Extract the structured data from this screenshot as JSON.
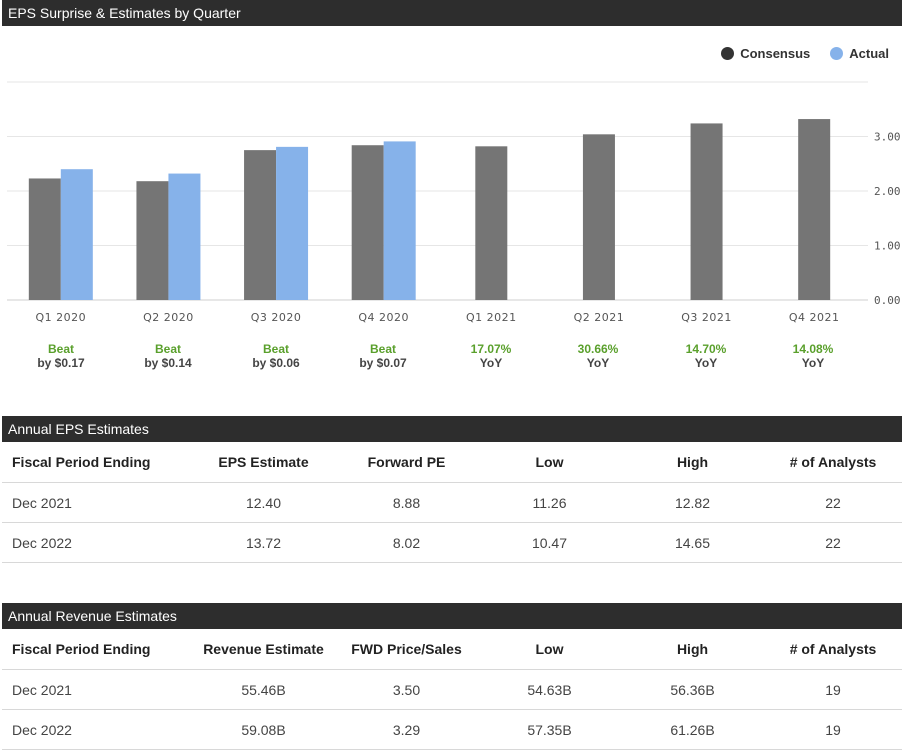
{
  "eps_chart": {
    "title": "EPS Surprise & Estimates by Quarter",
    "legend": [
      {
        "label": "Consensus",
        "color": "#757575"
      },
      {
        "label": "Actual",
        "color": "#86b2ea"
      }
    ],
    "surprises": [
      {
        "line1": "Beat",
        "line2": "by $0.17"
      },
      {
        "line1": "Beat",
        "line2": "by $0.14"
      },
      {
        "line1": "Beat",
        "line2": "by $0.06"
      },
      {
        "line1": "Beat",
        "line2": "by $0.07"
      },
      {
        "line1": "17.07%",
        "line2": "YoY"
      },
      {
        "line1": "30.66%",
        "line2": "YoY"
      },
      {
        "line1": "14.70%",
        "line2": "YoY"
      },
      {
        "line1": "14.08%",
        "line2": "YoY"
      }
    ]
  },
  "chart_data": {
    "type": "bar",
    "title": "EPS Surprise & Estimates by Quarter",
    "categories": [
      "Q1 2020",
      "Q2 2020",
      "Q3 2020",
      "Q4 2020",
      "Q1 2021",
      "Q2 2021",
      "Q3 2021",
      "Q4 2021"
    ],
    "series": [
      {
        "name": "Consensus",
        "values": [
          2.23,
          2.18,
          2.75,
          2.84,
          2.82,
          3.04,
          3.24,
          3.32
        ]
      },
      {
        "name": "Actual",
        "values": [
          2.4,
          2.32,
          2.81,
          2.91,
          null,
          null,
          null,
          null
        ]
      }
    ],
    "yticks": [
      "0.00",
      "1.00",
      "2.00",
      "3.00"
    ],
    "ylim": [
      0,
      4
    ],
    "xlabel": "",
    "ylabel": "",
    "legend_position": "top-right"
  },
  "annual_eps": {
    "title": "Annual EPS Estimates",
    "headers": [
      "Fiscal Period Ending",
      "EPS Estimate",
      "Forward PE",
      "Low",
      "High",
      "# of Analysts"
    ],
    "rows": [
      [
        "Dec 2021",
        "12.40",
        "8.88",
        "11.26",
        "12.82",
        "22"
      ],
      [
        "Dec 2022",
        "13.72",
        "8.02",
        "10.47",
        "14.65",
        "22"
      ]
    ]
  },
  "annual_revenue": {
    "title": "Annual Revenue Estimates",
    "headers": [
      "Fiscal Period Ending",
      "Revenue Estimate",
      "FWD Price/Sales",
      "Low",
      "High",
      "# of Analysts"
    ],
    "rows": [
      [
        "Dec 2021",
        "55.46B",
        "3.50",
        "54.63B",
        "56.36B",
        "19"
      ],
      [
        "Dec 2022",
        "59.08B",
        "3.29",
        "57.35B",
        "61.26B",
        "19"
      ]
    ]
  }
}
